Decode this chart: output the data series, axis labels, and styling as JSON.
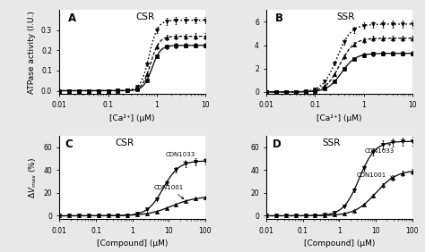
{
  "panel_A_title": "CSR",
  "panel_B_title": "SSR",
  "panel_C_title": "CSR",
  "panel_D_title": "SSR",
  "ylabel_top": "ATPase activity (I.U.)",
  "ylabel_bottom": "ΔV_max (%)",
  "xlabel_top": "[Ca²⁺] (μM)",
  "xlabel_bottom": "[Compound] (μM)",
  "panel_labels": [
    "A",
    "B",
    "C",
    "D"
  ],
  "background_color": "#e8e8e8",
  "A_Vmax": [
    0.225,
    0.27,
    0.35
  ],
  "A_K": [
    0.8,
    0.75,
    0.7
  ],
  "A_n": [
    5,
    5,
    5
  ],
  "B_Vmax": [
    3.3,
    4.6,
    5.8
  ],
  "B_K": [
    0.35,
    0.32,
    0.28
  ],
  "B_n": [
    3,
    3,
    3
  ],
  "A_ylim": [
    0,
    0.4
  ],
  "A_yticks": [
    0.0,
    0.1,
    0.2,
    0.3
  ],
  "B_ylim": [
    0,
    7
  ],
  "B_yticks": [
    0,
    2,
    4,
    6
  ],
  "CD_ylim": [
    0,
    70
  ],
  "CD_yticks": [
    0,
    20,
    40,
    60
  ]
}
